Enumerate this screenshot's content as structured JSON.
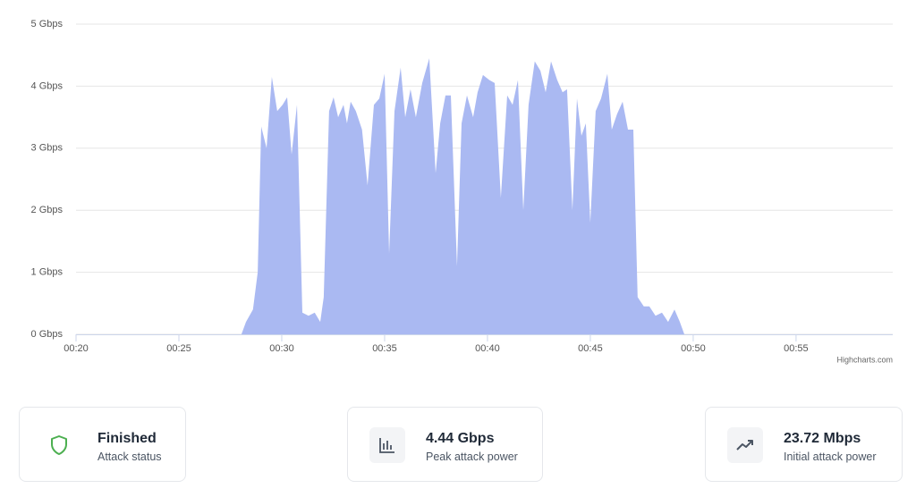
{
  "chart_data": {
    "type": "area",
    "color": "#aab9f2",
    "x": [
      20,
      28.04,
      28.26,
      28.6,
      28.83,
      29.0,
      29.26,
      29.52,
      29.78,
      30.04,
      30.26,
      30.48,
      30.74,
      31.0,
      31.3,
      31.6,
      31.87,
      32.04,
      32.3,
      32.52,
      32.74,
      33.0,
      33.17,
      33.35,
      33.6,
      33.9,
      34.17,
      34.48,
      34.74,
      35.0,
      35.22,
      35.48,
      35.78,
      36.0,
      36.26,
      36.52,
      36.83,
      37.17,
      37.48,
      37.7,
      37.96,
      38.22,
      38.52,
      38.74,
      39.0,
      39.3,
      39.52,
      39.78,
      40.09,
      40.35,
      40.65,
      40.96,
      41.22,
      41.48,
      41.74,
      42.0,
      42.3,
      42.57,
      42.83,
      43.09,
      43.39,
      43.65,
      43.87,
      44.13,
      44.35,
      44.57,
      44.78,
      45.0,
      45.26,
      45.52,
      45.83,
      46.04,
      46.3,
      46.57,
      46.83,
      47.09,
      47.3,
      47.6,
      47.87,
      48.17,
      48.48,
      48.78,
      49.09,
      49.35,
      49.57,
      59.7
    ],
    "values": [
      0,
      0,
      0.2,
      0.4,
      1.0,
      3.35,
      3.0,
      4.15,
      3.6,
      3.7,
      3.82,
      2.9,
      3.7,
      0.35,
      0.3,
      0.35,
      0.2,
      0.6,
      3.6,
      3.82,
      3.5,
      3.7,
      3.4,
      3.75,
      3.6,
      3.3,
      2.4,
      3.7,
      3.8,
      4.2,
      1.3,
      3.6,
      4.3,
      3.5,
      3.95,
      3.5,
      4.05,
      4.45,
      2.6,
      3.4,
      3.85,
      3.85,
      1.1,
      3.4,
      3.85,
      3.5,
      3.9,
      4.18,
      4.1,
      4.05,
      2.2,
      3.85,
      3.7,
      4.1,
      2.0,
      3.7,
      4.4,
      4.25,
      3.9,
      4.4,
      4.1,
      3.9,
      3.95,
      2.0,
      3.8,
      3.2,
      3.4,
      1.8,
      3.6,
      3.8,
      4.2,
      3.3,
      3.55,
      3.75,
      3.3,
      3.3,
      0.6,
      0.45,
      0.45,
      0.3,
      0.35,
      0.2,
      0.4,
      0.2,
      0,
      0
    ],
    "xlim": [
      20,
      59.7
    ],
    "xticks": [
      {
        "value": 20,
        "label": "00:20"
      },
      {
        "value": 25,
        "label": "00:25"
      },
      {
        "value": 30,
        "label": "00:30"
      },
      {
        "value": 35,
        "label": "00:35"
      },
      {
        "value": 40,
        "label": "00:40"
      },
      {
        "value": 45,
        "label": "00:45"
      },
      {
        "value": 50,
        "label": "00:50"
      },
      {
        "value": 55,
        "label": "00:55"
      }
    ],
    "ylim": [
      0,
      5
    ],
    "yticks": [
      {
        "value": 0,
        "label": "0 Gbps"
      },
      {
        "value": 1,
        "label": "1 Gbps"
      },
      {
        "value": 2,
        "label": "2 Gbps"
      },
      {
        "value": 3,
        "label": "3 Gbps"
      },
      {
        "value": 4,
        "label": "4 Gbps"
      },
      {
        "value": 5,
        "label": "5 Gbps"
      }
    ],
    "grid": true,
    "credits": "Highcharts.com"
  },
  "stats": [
    {
      "value": "Finished",
      "label": "Attack status"
    },
    {
      "value": "4.44 Gbps",
      "label": "Peak attack power"
    },
    {
      "value": "23.72 Mbps",
      "label": "Initial attack power"
    }
  ]
}
